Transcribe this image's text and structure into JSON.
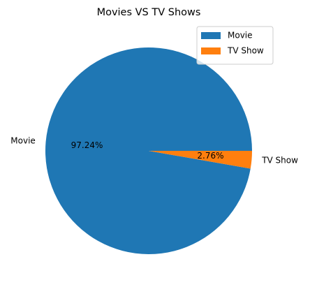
{
  "chart_data": {
    "type": "pie",
    "title": "Movies VS TV Shows",
    "categories": [
      "Movie",
      "TV Show"
    ],
    "values": [
      97.24,
      2.76
    ],
    "value_labels": [
      "97.24%",
      "2.76%"
    ],
    "colors": [
      "#1f77b4",
      "#ff7f0e"
    ],
    "legend": "upper right"
  }
}
